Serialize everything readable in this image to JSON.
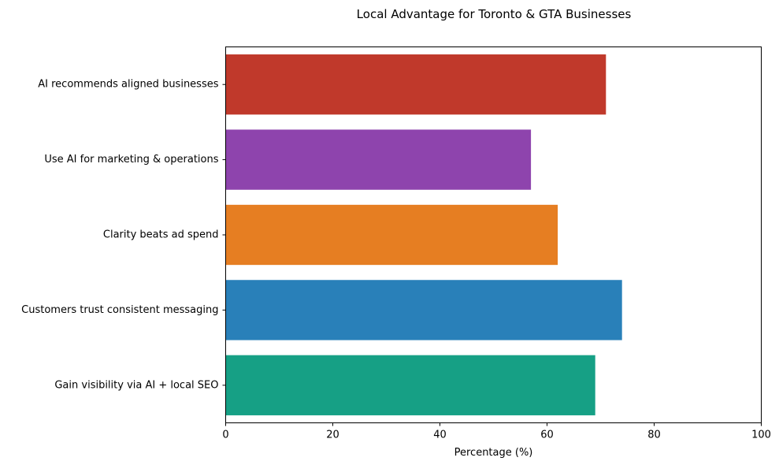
{
  "chart_data": {
    "type": "bar",
    "orientation": "horizontal",
    "title": "Local Advantage for Toronto & GTA Businesses",
    "xlabel": "Percentage (%)",
    "ylabel": "",
    "xlim": [
      0,
      100
    ],
    "xticks": [
      0,
      20,
      40,
      60,
      80,
      100
    ],
    "grid": false,
    "legend": "none",
    "categories": [
      "AI recommends aligned businesses",
      "Use AI for marketing & operations",
      "Clarity beats ad spend",
      "Customers trust consistent messaging",
      "Gain visibility via AI + local SEO"
    ],
    "values": [
      71,
      57,
      62,
      74,
      69
    ],
    "colors": [
      "#c0392b",
      "#8e44ad",
      "#e67e22",
      "#2980b9",
      "#16a085"
    ]
  }
}
